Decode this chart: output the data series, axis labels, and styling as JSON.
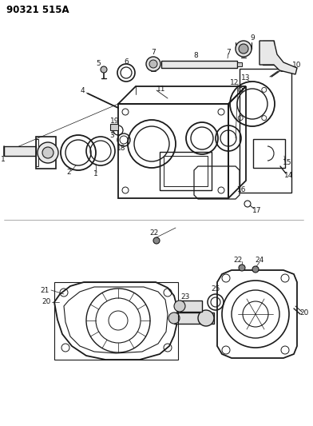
{
  "title": "90321 515A",
  "bg_color": "#ffffff",
  "line_color": "#1a1a1a",
  "fig_width": 3.92,
  "fig_height": 5.33,
  "dpi": 100
}
